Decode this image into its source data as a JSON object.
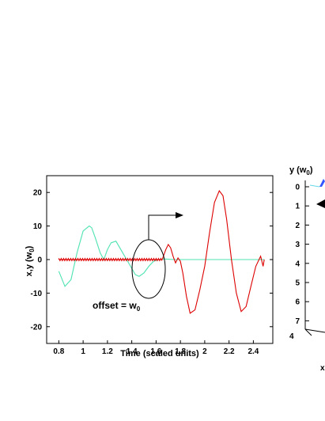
{
  "chart_data": [
    {
      "type": "line",
      "xlabel": "Time (scaled units)",
      "ylabel": "x,y  (w",
      "ylabel_sub": "0",
      "ylabel_close": ")",
      "xlim": [
        0.7,
        2.56
      ],
      "ylim": [
        -25,
        25
      ],
      "xticks": [
        0.8,
        1.0,
        1.2,
        1.4,
        1.6,
        1.8,
        2.0,
        2.2,
        2.4
      ],
      "xtick_labels": [
        "0.8",
        "1",
        "1.2",
        "1.4",
        "1.6",
        "1.8",
        "2",
        "2.2",
        "2.4"
      ],
      "yticks": [
        20,
        10,
        0,
        -10,
        -20
      ],
      "ytick_labels": [
        "20",
        "10",
        "0",
        "-10",
        "-20"
      ],
      "grid": false,
      "series": [
        {
          "color": "#4de3b0",
          "x": [
            0.8,
            0.85,
            0.9,
            0.95,
            1.0,
            1.05,
            1.07,
            1.1,
            1.14,
            1.17,
            1.2,
            1.23,
            1.27,
            1.31,
            1.35,
            1.39,
            1.43,
            1.46,
            1.5,
            1.54,
            1.58,
            1.62,
            1.66,
            1.7,
            1.75,
            1.8,
            2.0,
            2.2,
            2.49
          ],
          "y": [
            -3.5,
            -8.0,
            -6.0,
            2.0,
            8.5,
            10.0,
            9.5,
            6.5,
            2.0,
            0.0,
            3.0,
            5.0,
            5.5,
            3.0,
            0.5,
            -2.0,
            -4.5,
            -5.0,
            -4.0,
            -2.0,
            -0.5,
            0.0,
            0.2,
            0.1,
            0.0,
            0.0,
            0.0,
            0.0,
            0.0
          ]
        },
        {
          "color": "#dd0000",
          "x": [
            0.8,
            1.65,
            1.68,
            1.7,
            1.72,
            1.74,
            1.76,
            1.78,
            1.8,
            1.82,
            1.85,
            1.88,
            1.92,
            1.96,
            2.0,
            2.04,
            2.08,
            2.12,
            2.15,
            2.18,
            2.22,
            2.26,
            2.3,
            2.34,
            2.38,
            2.42,
            2.46,
            2.48,
            2.49
          ],
          "y": [
            0.0,
            0.0,
            3.0,
            4.5,
            3.5,
            1.0,
            -1.0,
            0.5,
            -0.5,
            -4.0,
            -11.0,
            -16.0,
            -15.0,
            -9.0,
            -2.0,
            8.0,
            17.0,
            20.5,
            19.0,
            12.0,
            0.0,
            -10.0,
            -15.5,
            -14.0,
            -8.0,
            -2.0,
            1.0,
            -2.0,
            0.0
          ]
        }
      ],
      "annotations": [
        {
          "text": "offset = w",
          "sub": "0"
        }
      ]
    },
    {
      "type": "line",
      "ylabel": "y (w",
      "ylabel_sub": "0",
      "ylabel_close": ")",
      "yticks": [
        0,
        1,
        2,
        3,
        4,
        5,
        6,
        7
      ],
      "ytick_labels": [
        "0",
        "1",
        "2",
        "3",
        "4",
        "5",
        "6",
        "7"
      ],
      "corner_label": "4",
      "partial_label": "x"
    }
  ]
}
